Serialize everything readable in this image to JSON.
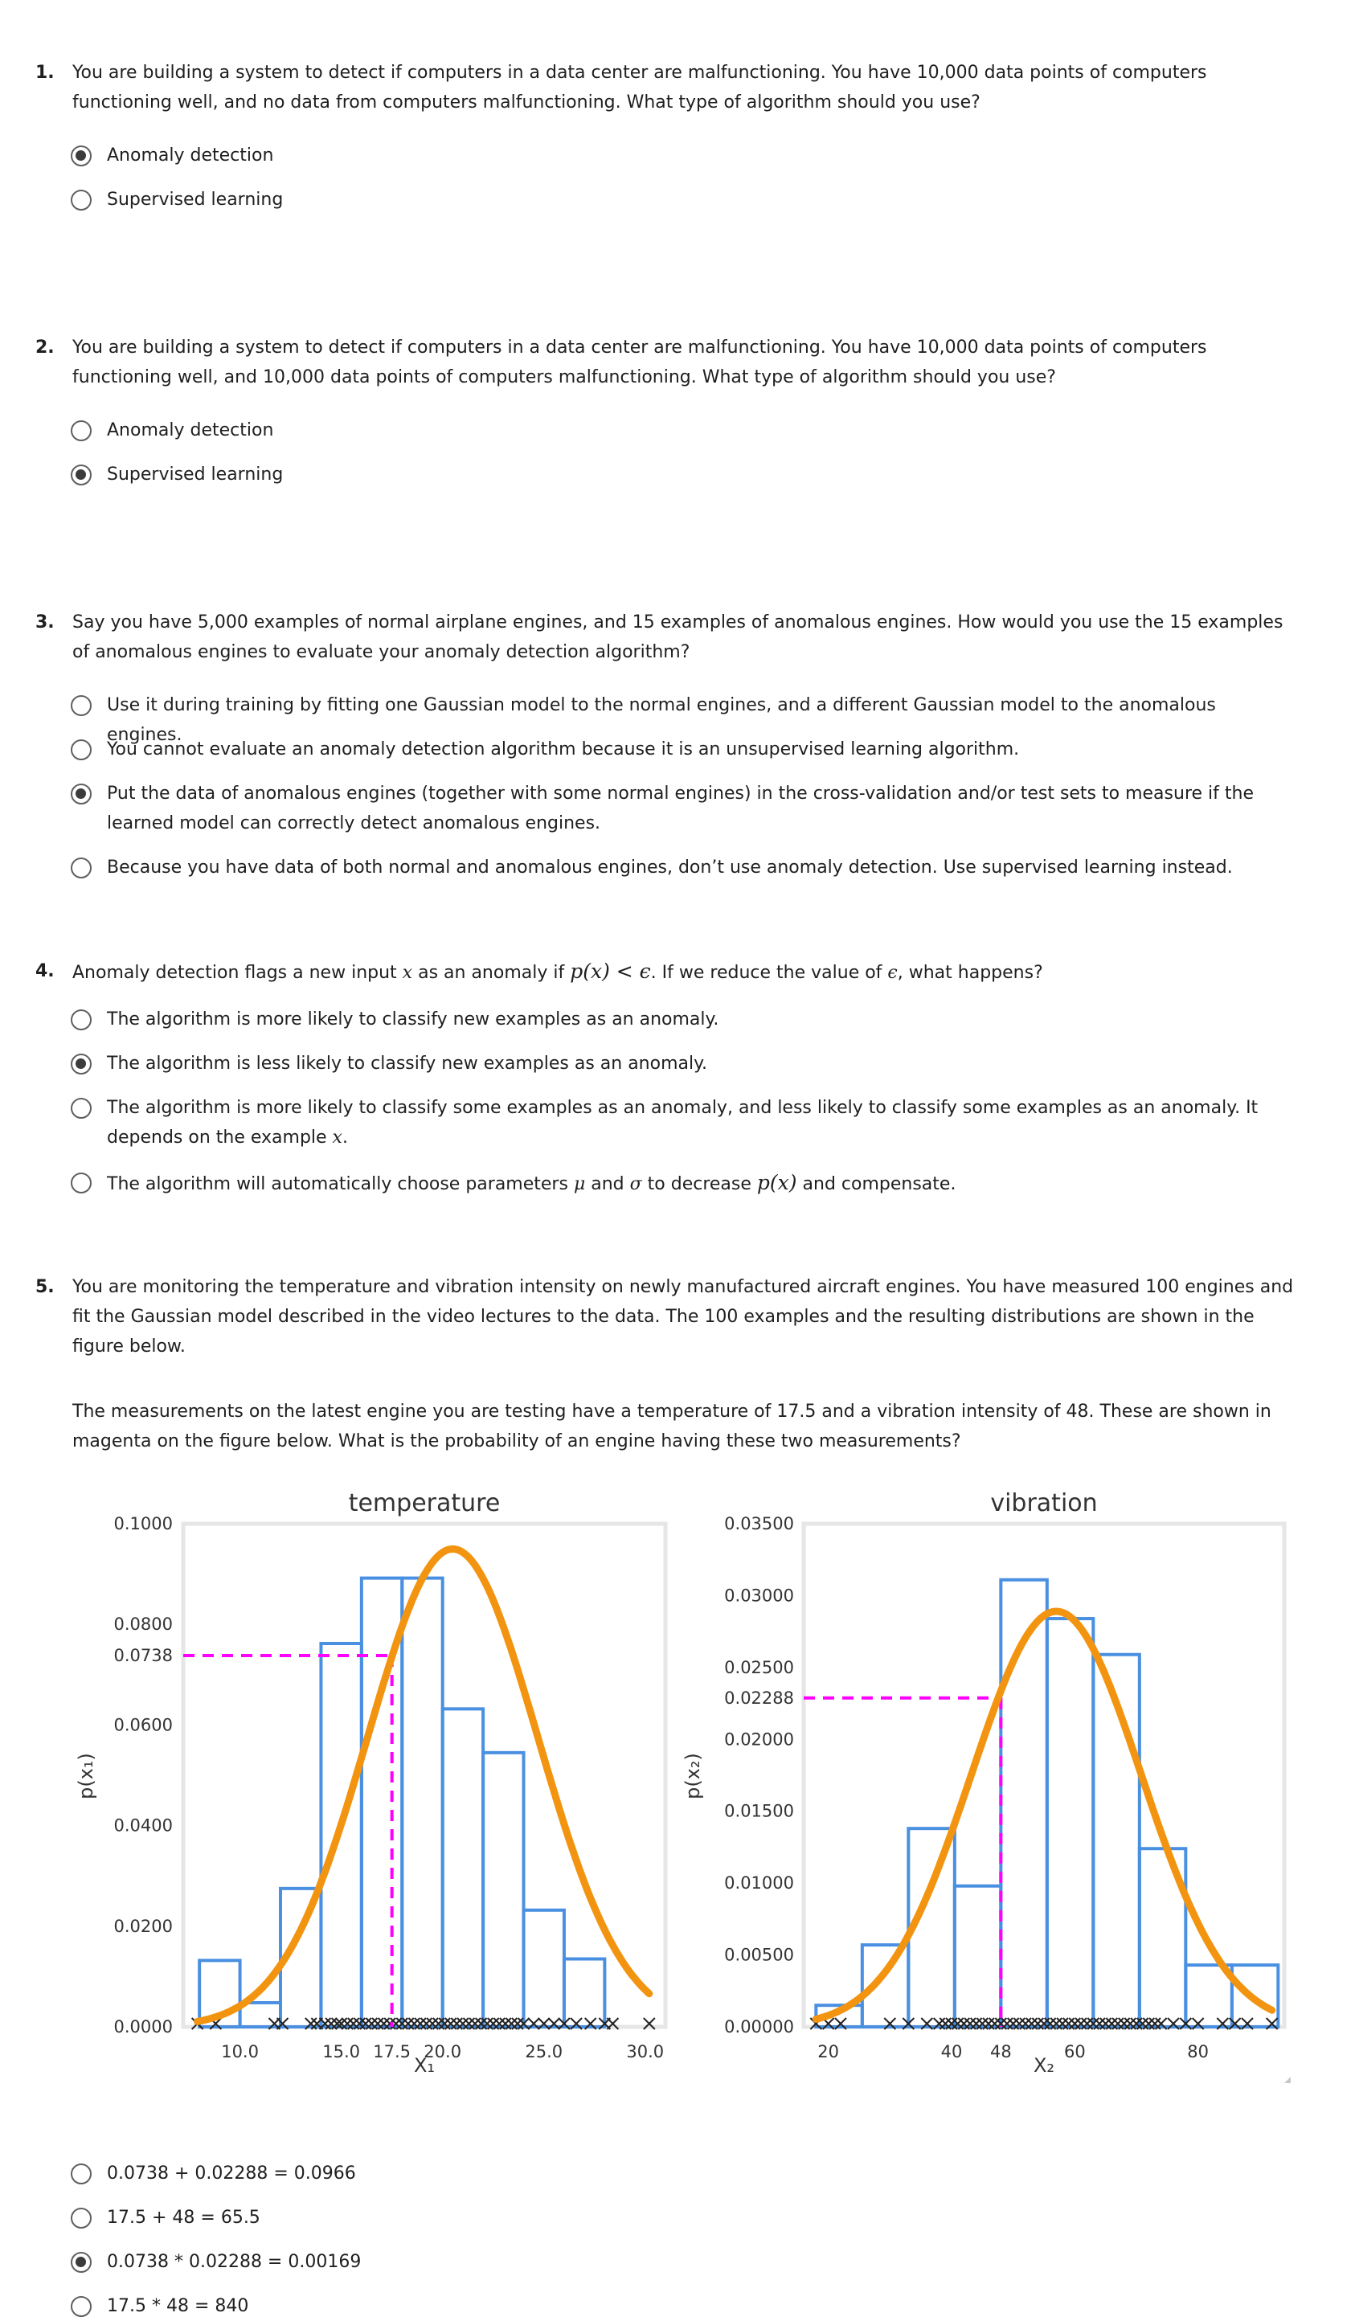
{
  "questions": [
    {
      "number": "1.",
      "text": "You are building a system to detect if computers in a data center are malfunctioning. You have 10,000 data points of computers functioning well, and no data from computers malfunctioning. What type of algorithm should you use?",
      "options": [
        {
          "label": "Anomaly detection",
          "selected": true
        },
        {
          "label": "Supervised learning",
          "selected": false
        }
      ]
    },
    {
      "number": "2.",
      "text": "You are building a system to detect if computers in a data center are malfunctioning. You have 10,000 data points of computers functioning well, and 10,000 data points of computers malfunctioning. What type of algorithm should you use?",
      "options": [
        {
          "label": "Anomaly detection",
          "selected": false
        },
        {
          "label": "Supervised learning",
          "selected": true
        }
      ]
    },
    {
      "number": "3.",
      "text": "Say you have 5,000 examples of normal airplane engines, and 15 examples of anomalous engines. How would you use the 15 examples of anomalous engines to evaluate your anomaly detection algorithm?",
      "options": [
        {
          "label": "Use it during training by fitting one Gaussian model to the normal engines, and a different Gaussian model to the anomalous engines.",
          "selected": false
        },
        {
          "label": "You cannot evaluate an anomaly detection algorithm because it is an unsupervised learning algorithm.",
          "selected": false
        },
        {
          "label": "Put the data of anomalous engines (together with some normal engines) in the cross-validation and/or test sets to measure if the learned model can correctly detect anomalous engines.",
          "selected": true
        },
        {
          "label": "Because you have data of both normal and anomalous engines, don’t use anomaly detection. Use supervised learning instead.",
          "selected": false
        }
      ]
    },
    {
      "number": "4.",
      "text_parts": [
        "Anomaly detection flags a new input ",
        "x",
        " as an anomaly if ",
        "p(x) < ϵ",
        ". If we reduce the value of ",
        "ϵ",
        ", what happens?"
      ],
      "options": [
        {
          "label": "The algorithm is more likely to classify new examples as an anomaly.",
          "selected": false
        },
        {
          "label": "The algorithm is less likely to classify new examples as an anomaly.",
          "selected": true
        },
        {
          "label_parts": [
            "The algorithm is more likely to classify some examples as an anomaly, and less likely to classify some examples as an anomaly. It depends on the example ",
            "x",
            "."
          ],
          "selected": false
        },
        {
          "label_parts": [
            "The algorithm will automatically choose parameters ",
            "μ",
            " and ",
            "σ",
            " to decrease ",
            "p(x)",
            " and compensate."
          ],
          "selected": false
        }
      ]
    },
    {
      "number": "5.",
      "text": "You are monitoring the temperature and vibration intensity on newly manufactured aircraft engines. You have measured 100 engines and fit the Gaussian model described in the video lectures to the data. The 100 examples and the resulting distributions are shown in the figure below.",
      "text2": "The measurements on the latest engine you are testing have a temperature of 17.5 and a vibration intensity of 48. These are shown in magenta on the figure below. What is the probability of an engine having these two measurements?",
      "options": [
        {
          "label": "0.0738 + 0.02288 = 0.0966",
          "selected": false
        },
        {
          "label": "17.5 + 48 = 65.5",
          "selected": false
        },
        {
          "label": "0.0738 * 0.02288 = 0.00169",
          "selected": true
        },
        {
          "label": "17.5 * 48 = 840",
          "selected": false
        }
      ]
    }
  ],
  "chart_data": [
    {
      "type": "bar",
      "title": "temperature",
      "xlabel": "X₁",
      "ylabel": "p(x₁)",
      "xlim": [
        7.2,
        31
      ],
      "ylim": [
        0,
        0.1
      ],
      "yticks": [
        "0.1000",
        "0.0800",
        "0.0738",
        "0.0600",
        "0.0400",
        "0.0200",
        "0.0000"
      ],
      "xticks": [
        "10.0",
        "15.0",
        "17.5",
        "20.0",
        "25.0",
        "30.0"
      ],
      "bin_edges": [
        8.0,
        10.0,
        12.0,
        14.0,
        16.0,
        18.0,
        20.0,
        22.0,
        24.0,
        26.0,
        28.0,
        30.0
      ],
      "values": [
        0.0132,
        0.0048,
        0.0275,
        0.0762,
        0.0892,
        0.0892,
        0.0632,
        0.0545,
        0.0232,
        0.0135,
        0.0
      ],
      "gaussian": {
        "mean": 20.5,
        "std": 4.2
      },
      "marker": {
        "x": 17.5,
        "y": 0.0738,
        "color": "#ff00ff"
      },
      "hist_color": "#4a90e2",
      "curve_color": "#f29410",
      "samples": [
        7.9,
        8.8,
        11.7,
        12.1,
        13.5,
        13.8,
        14.2,
        14.5,
        14.8,
        15.0,
        15.3,
        15.6,
        15.9,
        16.2,
        16.5,
        16.8,
        17.1,
        17.4,
        17.7,
        18.0,
        18.3,
        18.6,
        18.9,
        19.2,
        19.5,
        19.8,
        20.1,
        20.4,
        20.7,
        21.0,
        21.3,
        21.6,
        21.9,
        22.2,
        22.5,
        22.8,
        23.1,
        23.4,
        23.7,
        24.0,
        24.5,
        25.0,
        25.5,
        26.0,
        26.6,
        27.3,
        28.0,
        28.4,
        30.2
      ]
    },
    {
      "type": "bar",
      "title": "vibration",
      "xlabel": "X₂",
      "ylabel": "p(x₂)",
      "xlim": [
        16,
        94
      ],
      "ylim": [
        0,
        0.035
      ],
      "yticks": [
        "0.03500",
        "0.03000",
        "0.02500",
        "0.02288",
        "0.02000",
        "0.01500",
        "0.01000",
        "0.00500",
        "0.00000"
      ],
      "xticks": [
        "20",
        "40",
        "48",
        "60",
        "80"
      ],
      "bin_edges": [
        18.0,
        25.5,
        33.0,
        40.5,
        48.0,
        55.5,
        63.0,
        70.5,
        78.0,
        85.5,
        93.0
      ],
      "values": [
        0.0015,
        0.0057,
        0.0138,
        0.0098,
        0.0311,
        0.0284,
        0.0259,
        0.0124,
        0.0043,
        0.0043
      ],
      "gaussian": {
        "mean": 57,
        "std": 13.8
      },
      "marker": {
        "x": 48,
        "y": 0.02288,
        "color": "#ff00ff"
      },
      "hist_color": "#4a90e2",
      "curve_color": "#f29410",
      "samples": [
        18,
        20,
        22,
        30,
        33,
        36,
        38,
        39,
        40,
        41,
        42,
        43,
        44,
        45,
        46,
        47,
        48,
        49,
        50,
        51,
        52,
        53,
        54,
        55,
        56,
        57,
        58,
        59,
        60,
        61,
        62,
        63,
        64,
        65,
        66,
        67,
        68,
        69,
        70,
        71,
        72,
        73,
        74,
        76,
        78,
        80,
        84,
        86,
        88,
        92
      ]
    }
  ]
}
